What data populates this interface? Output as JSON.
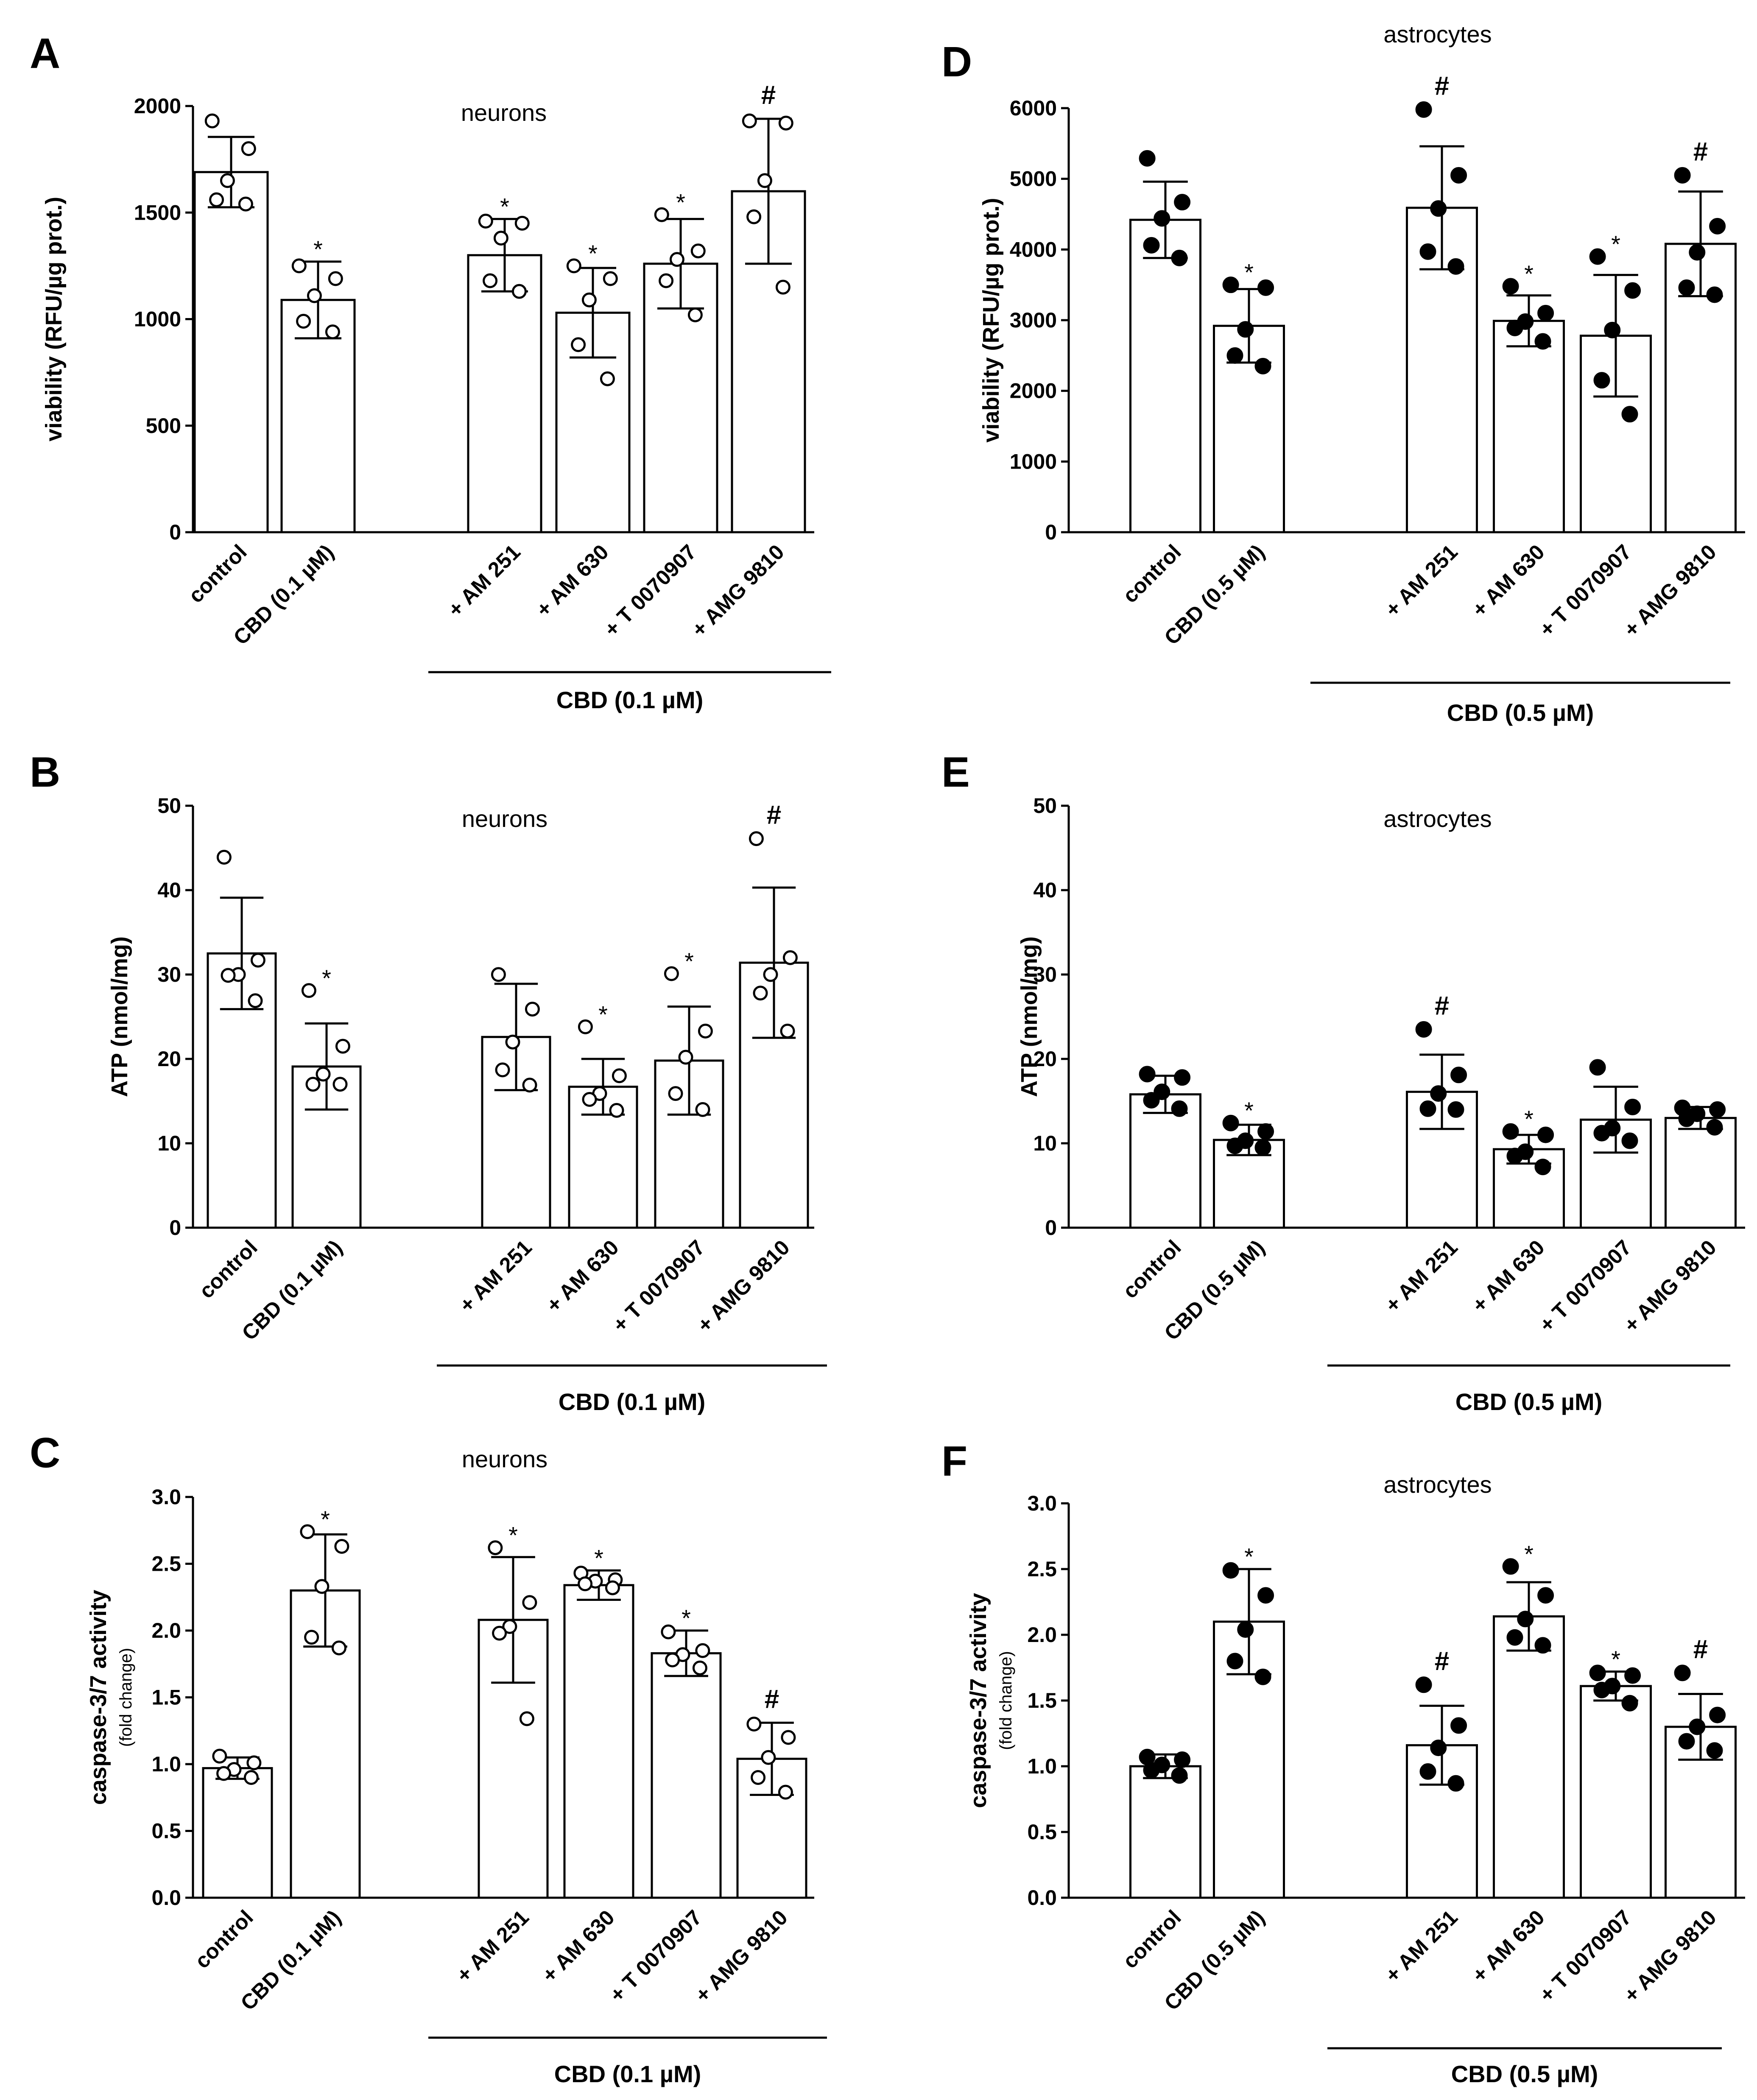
{
  "figure": {
    "title": ""
  },
  "shared": {
    "significance_star": "*",
    "significance_hash": "#"
  },
  "chart_data": [
    {
      "type": "bar",
      "panel_letter": "A",
      "cell_type": "neurons",
      "marker": "open",
      "ylabel": "viability (RFU/µg prot.)",
      "ylabel_sub": "",
      "ylim": [
        0,
        2000
      ],
      "yticks": [
        0,
        500,
        1000,
        1500,
        2000
      ],
      "ytick_labels": [
        "0",
        "500",
        "1000",
        "1500",
        "2000"
      ],
      "categories": [
        "control",
        "CBD (0.1 µM)",
        "+ AM 251",
        "+ AM 630",
        "+ T 0070907",
        "+ AMG 9810"
      ],
      "group_label": "CBD (0.1 µM)",
      "values": [
        1690,
        1090,
        1300,
        1030,
        1260,
        1600
      ],
      "sd": [
        165,
        180,
        170,
        210,
        210,
        340
      ],
      "significance": [
        "",
        "*",
        "*",
        "*",
        "*",
        "#"
      ],
      "points": [
        [
          1930,
          1800,
          1650,
          1560,
          1540
        ],
        [
          1250,
          1190,
          1110,
          990,
          940
        ],
        [
          1460,
          1450,
          1380,
          1180,
          1130
        ],
        [
          1250,
          1190,
          1090,
          880,
          720
        ],
        [
          1490,
          1320,
          1280,
          1180,
          1020
        ],
        [
          1930,
          1920,
          1650,
          1480,
          1150
        ]
      ]
    },
    {
      "type": "bar",
      "panel_letter": "B",
      "cell_type": "neurons",
      "marker": "open",
      "ylabel": "ATP (nmol/mg)",
      "ylabel_sub": "",
      "ylim": [
        0,
        50
      ],
      "yticks": [
        0,
        10,
        20,
        30,
        40,
        50
      ],
      "ytick_labels": [
        "0",
        "10",
        "20",
        "30",
        "40",
        "50"
      ],
      "categories": [
        "control",
        "CBD (0.1 µM)",
        "+ AM 251",
        "+ AM 630",
        "+ T 0070907",
        "+ AMG 9810"
      ],
      "group_label": "CBD (0.1 µM)",
      "values": [
        32.5,
        19.1,
        22.6,
        16.7,
        19.8,
        31.4
      ],
      "sd": [
        6.6,
        5.1,
        6.3,
        3.3,
        6.4,
        8.9
      ],
      "significance": [
        "",
        "*",
        "",
        "*",
        "*",
        "#"
      ],
      "points": [
        [
          43.9,
          31.7,
          30.0,
          29.9,
          26.9
        ],
        [
          28.1,
          21.5,
          18.2,
          17.0,
          17.0
        ],
        [
          30.0,
          25.9,
          22.0,
          18.7,
          16.9
        ],
        [
          23.8,
          18.0,
          15.9,
          15.2,
          13.9
        ],
        [
          30.1,
          23.3,
          20.2,
          15.9,
          14.0
        ],
        [
          46.1,
          32.0,
          30.0,
          27.8,
          23.3
        ]
      ]
    },
    {
      "type": "bar",
      "panel_letter": "C",
      "cell_type": "neurons",
      "marker": "open",
      "ylabel": "caspase-3/7 activity",
      "ylabel_sub": "(fold change)",
      "ylim": [
        0,
        3.0
      ],
      "yticks": [
        0,
        0.5,
        1.0,
        1.5,
        2.0,
        2.5,
        3.0
      ],
      "ytick_labels": [
        "0.0",
        "0.5",
        "1.0",
        "1.5",
        "2.0",
        "2.5",
        "3.0"
      ],
      "categories": [
        "control",
        "CBD (0.1 µM)",
        "+ AM 251",
        "+ AM 630",
        "+ T 0070907",
        "+ AMG 9810"
      ],
      "group_label": "CBD (0.1 µM)",
      "values": [
        0.97,
        2.3,
        2.08,
        2.34,
        1.83,
        1.04
      ],
      "sd": [
        0.08,
        0.42,
        0.47,
        0.11,
        0.17,
        0.27
      ],
      "significance": [
        "",
        "*",
        "*",
        "*",
        "*",
        "#"
      ],
      "points": [
        [
          1.06,
          1.01,
          0.96,
          0.93,
          0.9
        ],
        [
          2.74,
          2.63,
          2.33,
          1.95,
          1.87
        ],
        [
          2.62,
          2.21,
          2.03,
          1.98,
          1.34
        ],
        [
          2.43,
          2.38,
          2.37,
          2.35,
          2.32
        ],
        [
          1.99,
          1.85,
          1.82,
          1.78,
          1.72
        ],
        [
          1.3,
          1.2,
          1.05,
          0.9,
          0.79
        ]
      ]
    },
    {
      "type": "bar",
      "panel_letter": "D",
      "cell_type": "astrocytes",
      "marker": "filled",
      "ylabel": "viability (RFU/µg prot.)",
      "ylabel_sub": "",
      "ylim": [
        0,
        6000
      ],
      "yticks": [
        0,
        1000,
        2000,
        3000,
        4000,
        5000,
        6000
      ],
      "ytick_labels": [
        "0",
        "1000",
        "2000",
        "3000",
        "4000",
        "5000",
        "6000"
      ],
      "categories": [
        "control",
        "CBD (0.5 µM)",
        "+ AM 251",
        "+ AM 630",
        "+ T 0070907",
        "+ AMG 9810"
      ],
      "group_label": "CBD (0.5 µM)",
      "values": [
        4420,
        2920,
        4590,
        2990,
        2780,
        4080
      ],
      "sd": [
        540,
        520,
        870,
        360,
        860,
        740
      ],
      "significance": [
        "",
        "*",
        "#",
        "*",
        "*",
        "#"
      ],
      "points": [
        [
          5290,
          4670,
          4440,
          4060,
          3880
        ],
        [
          3500,
          3460,
          2870,
          2500,
          2350
        ],
        [
          5980,
          5050,
          4580,
          3970,
          3760
        ],
        [
          3480,
          3100,
          2980,
          2890,
          2700
        ],
        [
          3900,
          3420,
          2860,
          2150,
          1670
        ],
        [
          5050,
          4330,
          3960,
          3460,
          3360
        ]
      ]
    },
    {
      "type": "bar",
      "panel_letter": "E",
      "cell_type": "astrocytes",
      "marker": "filled",
      "ylabel": "ATP (nmol/mg)",
      "ylabel_sub": "",
      "ylim": [
        0,
        50
      ],
      "yticks": [
        0,
        10,
        20,
        30,
        40,
        50
      ],
      "ytick_labels": [
        "0",
        "10",
        "20",
        "30",
        "40",
        "50"
      ],
      "categories": [
        "control",
        "CBD (0.5 µM)",
        "+ AM 251",
        "+ AM 630",
        "+ T 0070907",
        "+ AMG 9810"
      ],
      "group_label": "CBD (0.5 µM)",
      "values": [
        15.8,
        10.4,
        16.1,
        9.3,
        12.8,
        13.0
      ],
      "sd": [
        2.2,
        1.8,
        4.4,
        1.7,
        3.9,
        1.3
      ],
      "significance": [
        "",
        "*",
        "#",
        "*",
        "",
        ""
      ],
      "points": [
        [
          18.2,
          17.8,
          16.1,
          15.1,
          14.1
        ],
        [
          12.4,
          11.4,
          10.3,
          9.7,
          9.5
        ],
        [
          23.5,
          18.1,
          15.9,
          14.1,
          14.0
        ],
        [
          11.4,
          11.0,
          9.0,
          8.5,
          7.2
        ],
        [
          19.0,
          14.3,
          11.8,
          11.2,
          10.3
        ],
        [
          14.2,
          14.0,
          13.5,
          12.9,
          11.9
        ]
      ]
    },
    {
      "type": "bar",
      "panel_letter": "F",
      "cell_type": "astrocytes",
      "marker": "filled",
      "ylabel": "caspase-3/7 activity",
      "ylabel_sub": "(fold change)",
      "ylim": [
        0,
        3.0
      ],
      "yticks": [
        0,
        0.5,
        1.0,
        1.5,
        2.0,
        2.5,
        3.0
      ],
      "ytick_labels": [
        "0.0",
        "0.5",
        "1.0",
        "1.5",
        "2.0",
        "2.5",
        "3.0"
      ],
      "categories": [
        "control",
        "CBD (0.5 µM)",
        "+ AM 251",
        "+ AM 630",
        "+ T 0070907",
        "+ AMG 9810"
      ],
      "group_label": "CBD (0.5 µM)",
      "values": [
        1.0,
        2.1,
        1.16,
        2.14,
        1.61,
        1.3
      ],
      "sd": [
        0.09,
        0.4,
        0.3,
        0.26,
        0.11,
        0.25
      ],
      "significance": [
        "",
        "*",
        "#",
        "*",
        "*",
        "#"
      ],
      "points": [
        [
          1.07,
          1.05,
          1.01,
          0.97,
          0.93
        ],
        [
          2.49,
          2.3,
          2.04,
          1.8,
          1.68
        ],
        [
          1.62,
          1.31,
          1.14,
          0.96,
          0.87
        ],
        [
          2.52,
          2.3,
          2.12,
          1.98,
          1.92
        ],
        [
          1.71,
          1.69,
          1.61,
          1.58,
          1.48
        ],
        [
          1.71,
          1.39,
          1.3,
          1.19,
          1.12
        ]
      ]
    }
  ]
}
